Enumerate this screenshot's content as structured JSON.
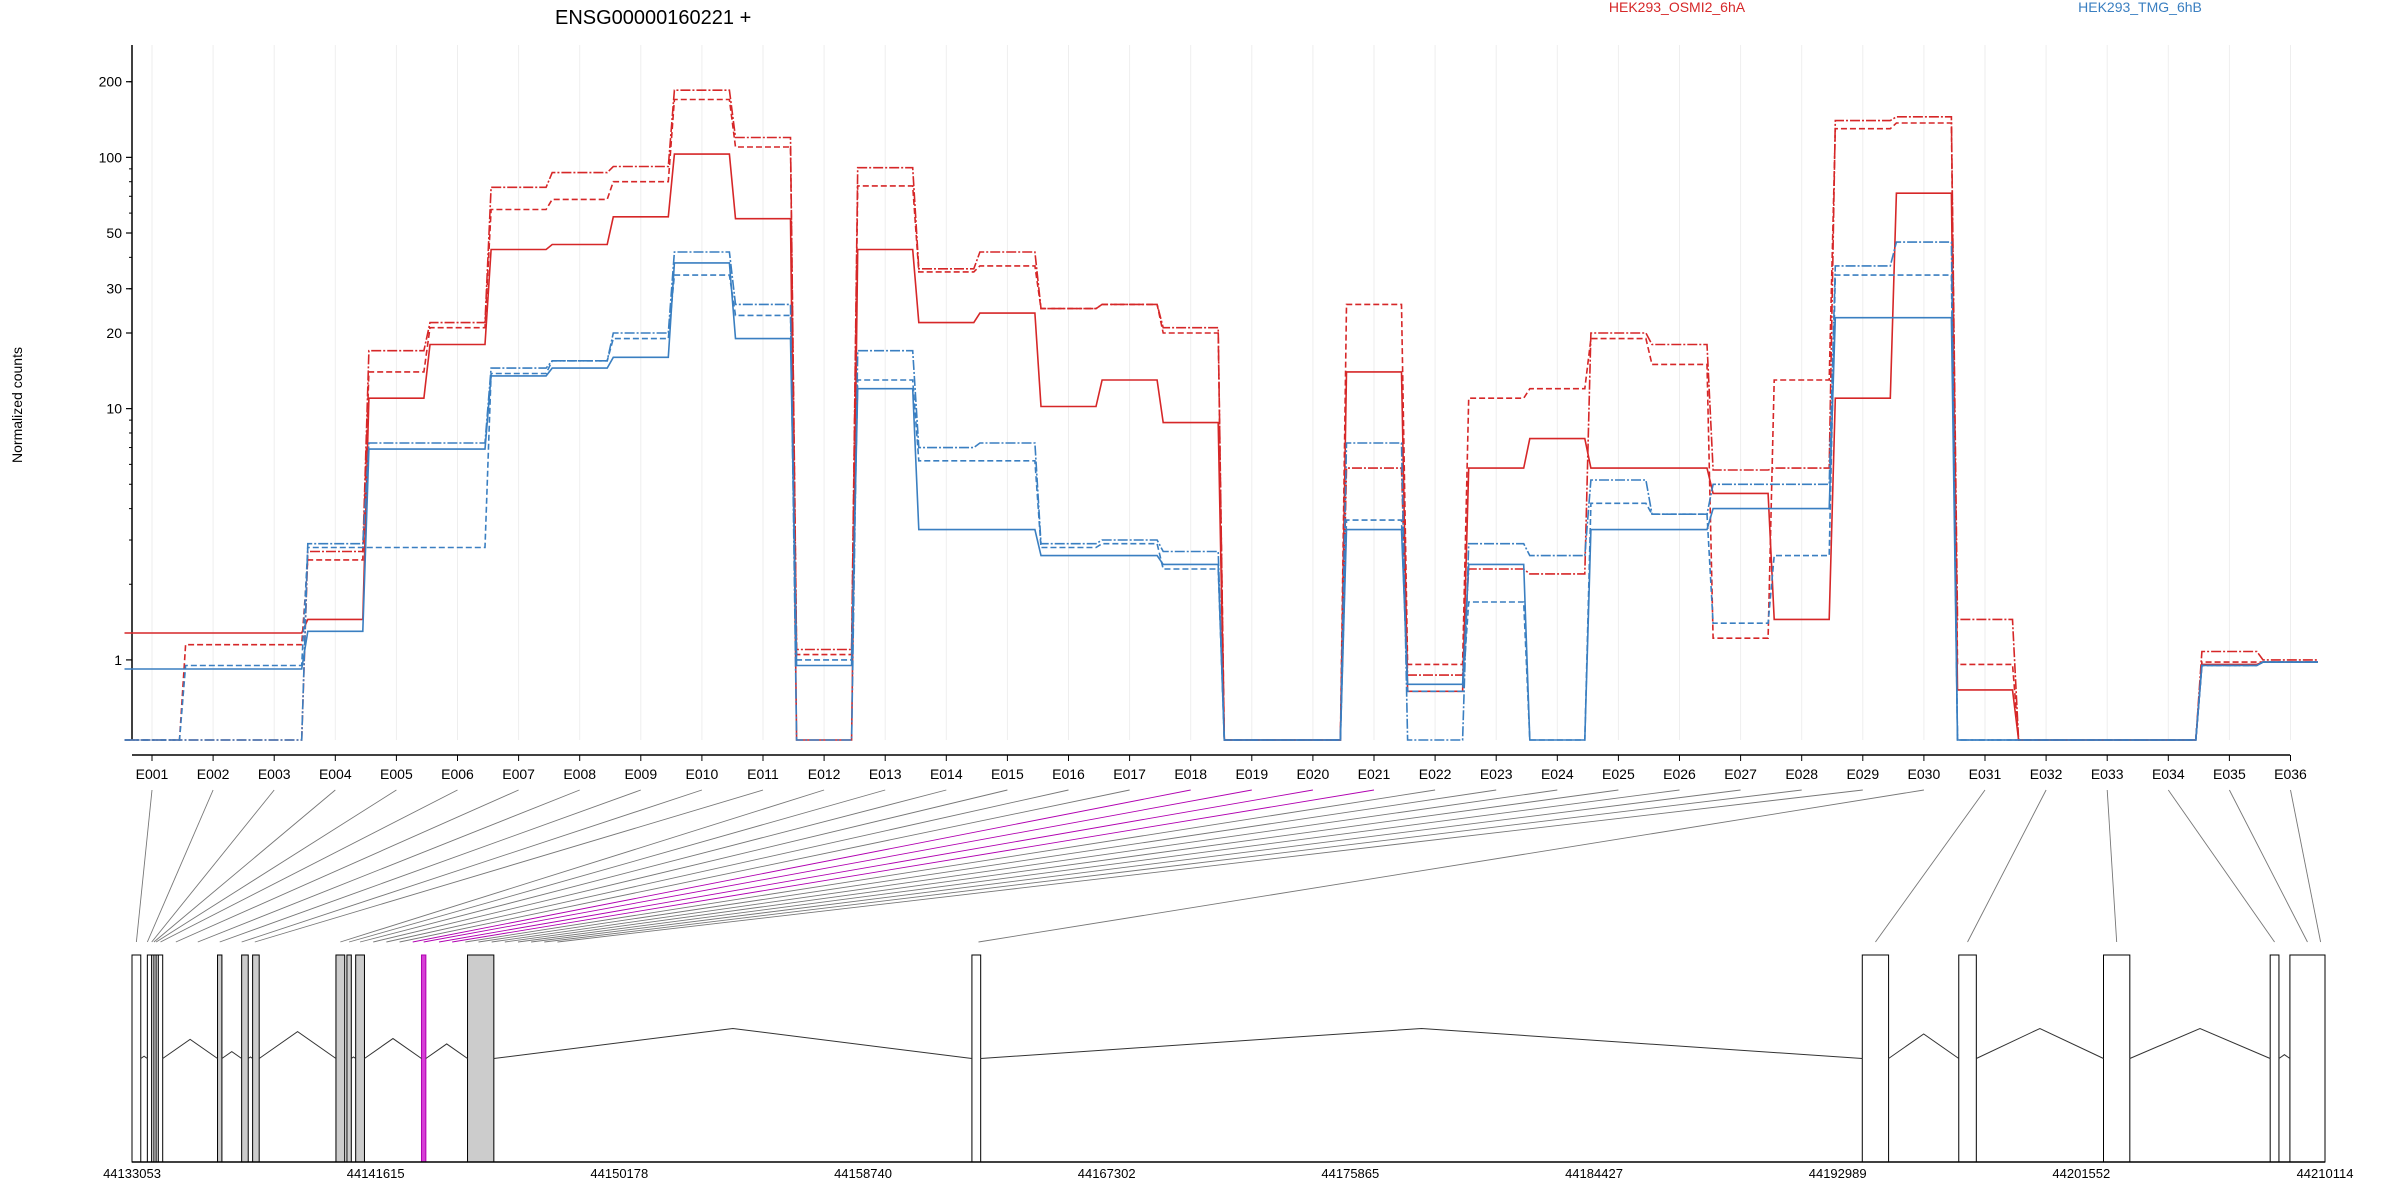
{
  "chart_data": {
    "type": "line",
    "title": "ENSG00000160221 +",
    "ylabel": "Normalized counts",
    "y_scale": "log",
    "ylim": [
      0.48,
      280
    ],
    "y_ticks": [
      1,
      10,
      20,
      30,
      50,
      100,
      200
    ],
    "grid": "vertical",
    "legend": [
      {
        "label": "HEK293_OSMI2_6hA",
        "color": "#d62728"
      },
      {
        "label": "HEK293_TMG_6hB",
        "color": "#3a7fc1"
      }
    ],
    "categories": [
      "E001",
      "E002",
      "E003",
      "E004",
      "E005",
      "E006",
      "E007",
      "E008",
      "E009",
      "E010",
      "E011",
      "E012",
      "E013",
      "E014",
      "E015",
      "E016",
      "E017",
      "E018",
      "E019",
      "E020",
      "E021",
      "E022",
      "E023",
      "E024",
      "E025",
      "E026",
      "E027",
      "E028",
      "E029",
      "E030",
      "E031",
      "E032",
      "E033",
      "E034",
      "E035",
      "E036"
    ],
    "series": [
      {
        "group": "red",
        "color": "#d62728",
        "values": [
          1.28,
          1.28,
          1.28,
          1.45,
          11,
          18,
          43,
          45,
          58,
          103,
          57,
          0.48,
          43,
          22,
          24,
          10.2,
          13,
          8.8,
          0.48,
          0.48,
          14,
          0.75,
          5.8,
          7.6,
          5.8,
          5.8,
          4.6,
          1.45,
          11,
          72,
          0.76,
          0.48,
          0.48,
          0.48,
          0.96,
          0.98
        ]
      },
      {
        "group": "red",
        "color": "#d62728",
        "values": [
          0.48,
          1.15,
          1.15,
          2.5,
          14,
          21,
          62,
          68,
          80,
          170,
          110,
          1.05,
          77,
          35,
          37,
          25,
          26,
          20,
          0.48,
          0.48,
          26,
          0.96,
          11,
          12,
          19,
          15,
          1.22,
          13,
          130,
          137,
          0.96,
          0.48,
          0.48,
          0.48,
          0.98,
          0.98
        ]
      },
      {
        "group": "red",
        "color": "#d62728",
        "values": [
          0.48,
          0.48,
          0.48,
          2.7,
          17,
          22,
          76,
          87,
          92,
          185,
          120,
          1.1,
          91,
          36,
          42,
          25,
          26,
          21,
          0.48,
          0.48,
          5.8,
          0.87,
          2.3,
          2.2,
          20,
          18,
          5.7,
          5.8,
          140,
          145,
          1.45,
          0.48,
          0.48,
          0.48,
          1.08,
          1.0
        ]
      },
      {
        "group": "blue",
        "color": "#3a7fc1",
        "values": [
          0.92,
          0.92,
          0.92,
          1.3,
          6.9,
          6.9,
          13.5,
          14.5,
          16,
          38,
          19,
          0.95,
          12,
          3.3,
          3.3,
          2.6,
          2.6,
          2.4,
          0.48,
          0.48,
          3.3,
          0.8,
          2.4,
          0.48,
          3.3,
          3.3,
          4.0,
          4.0,
          23,
          23,
          0.48,
          0.48,
          0.48,
          0.48,
          0.95,
          0.98
        ]
      },
      {
        "group": "blue",
        "color": "#3a7fc1",
        "values": [
          0.48,
          0.95,
          0.95,
          2.8,
          2.8,
          2.8,
          13.8,
          15.5,
          19,
          34,
          23.5,
          1.0,
          13,
          6.2,
          6.2,
          2.8,
          2.9,
          2.3,
          0.48,
          0.48,
          3.6,
          0.75,
          1.7,
          0.48,
          4.2,
          3.8,
          1.4,
          2.6,
          34,
          34,
          0.48,
          0.48,
          0.48,
          0.48,
          0.95,
          0.98
        ]
      },
      {
        "group": "blue",
        "color": "#3a7fc1",
        "values": [
          0.48,
          0.48,
          0.48,
          2.9,
          7.3,
          7.3,
          14.5,
          15.5,
          20,
          42,
          26,
          0.48,
          17,
          7.0,
          7.3,
          2.9,
          3.0,
          2.7,
          0.48,
          0.48,
          7.3,
          0.48,
          2.9,
          2.6,
          5.2,
          3.8,
          5.0,
          5.0,
          37,
          46,
          0.48,
          0.48,
          0.48,
          0.48,
          0.95,
          0.98
        ]
      }
    ],
    "genomic_ticks": [
      "44133053",
      "44141615",
      "44150178",
      "44158740",
      "44167302",
      "44175865",
      "44184427",
      "44192989",
      "44201552",
      "44210114"
    ]
  }
}
